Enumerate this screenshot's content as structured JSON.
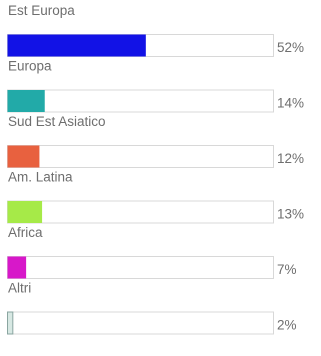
{
  "chart_data": {
    "type": "bar",
    "orientation": "horizontal",
    "value_suffix": "%",
    "xlim": [
      0,
      100
    ],
    "categories": [
      "Est Europa",
      "Europa",
      "Sud Est Asiatico",
      "Am. Latina",
      "Africa",
      "Altri"
    ],
    "values": [
      52,
      14,
      12,
      13,
      7,
      2
    ],
    "colors": [
      "#1212e6",
      "#22aaa8",
      "#e8613f",
      "#a6ea48",
      "#d718c9",
      "#d7e8e3"
    ],
    "labels": [
      "52%",
      "14%",
      "12%",
      "13%",
      "7%",
      "2%"
    ]
  }
}
